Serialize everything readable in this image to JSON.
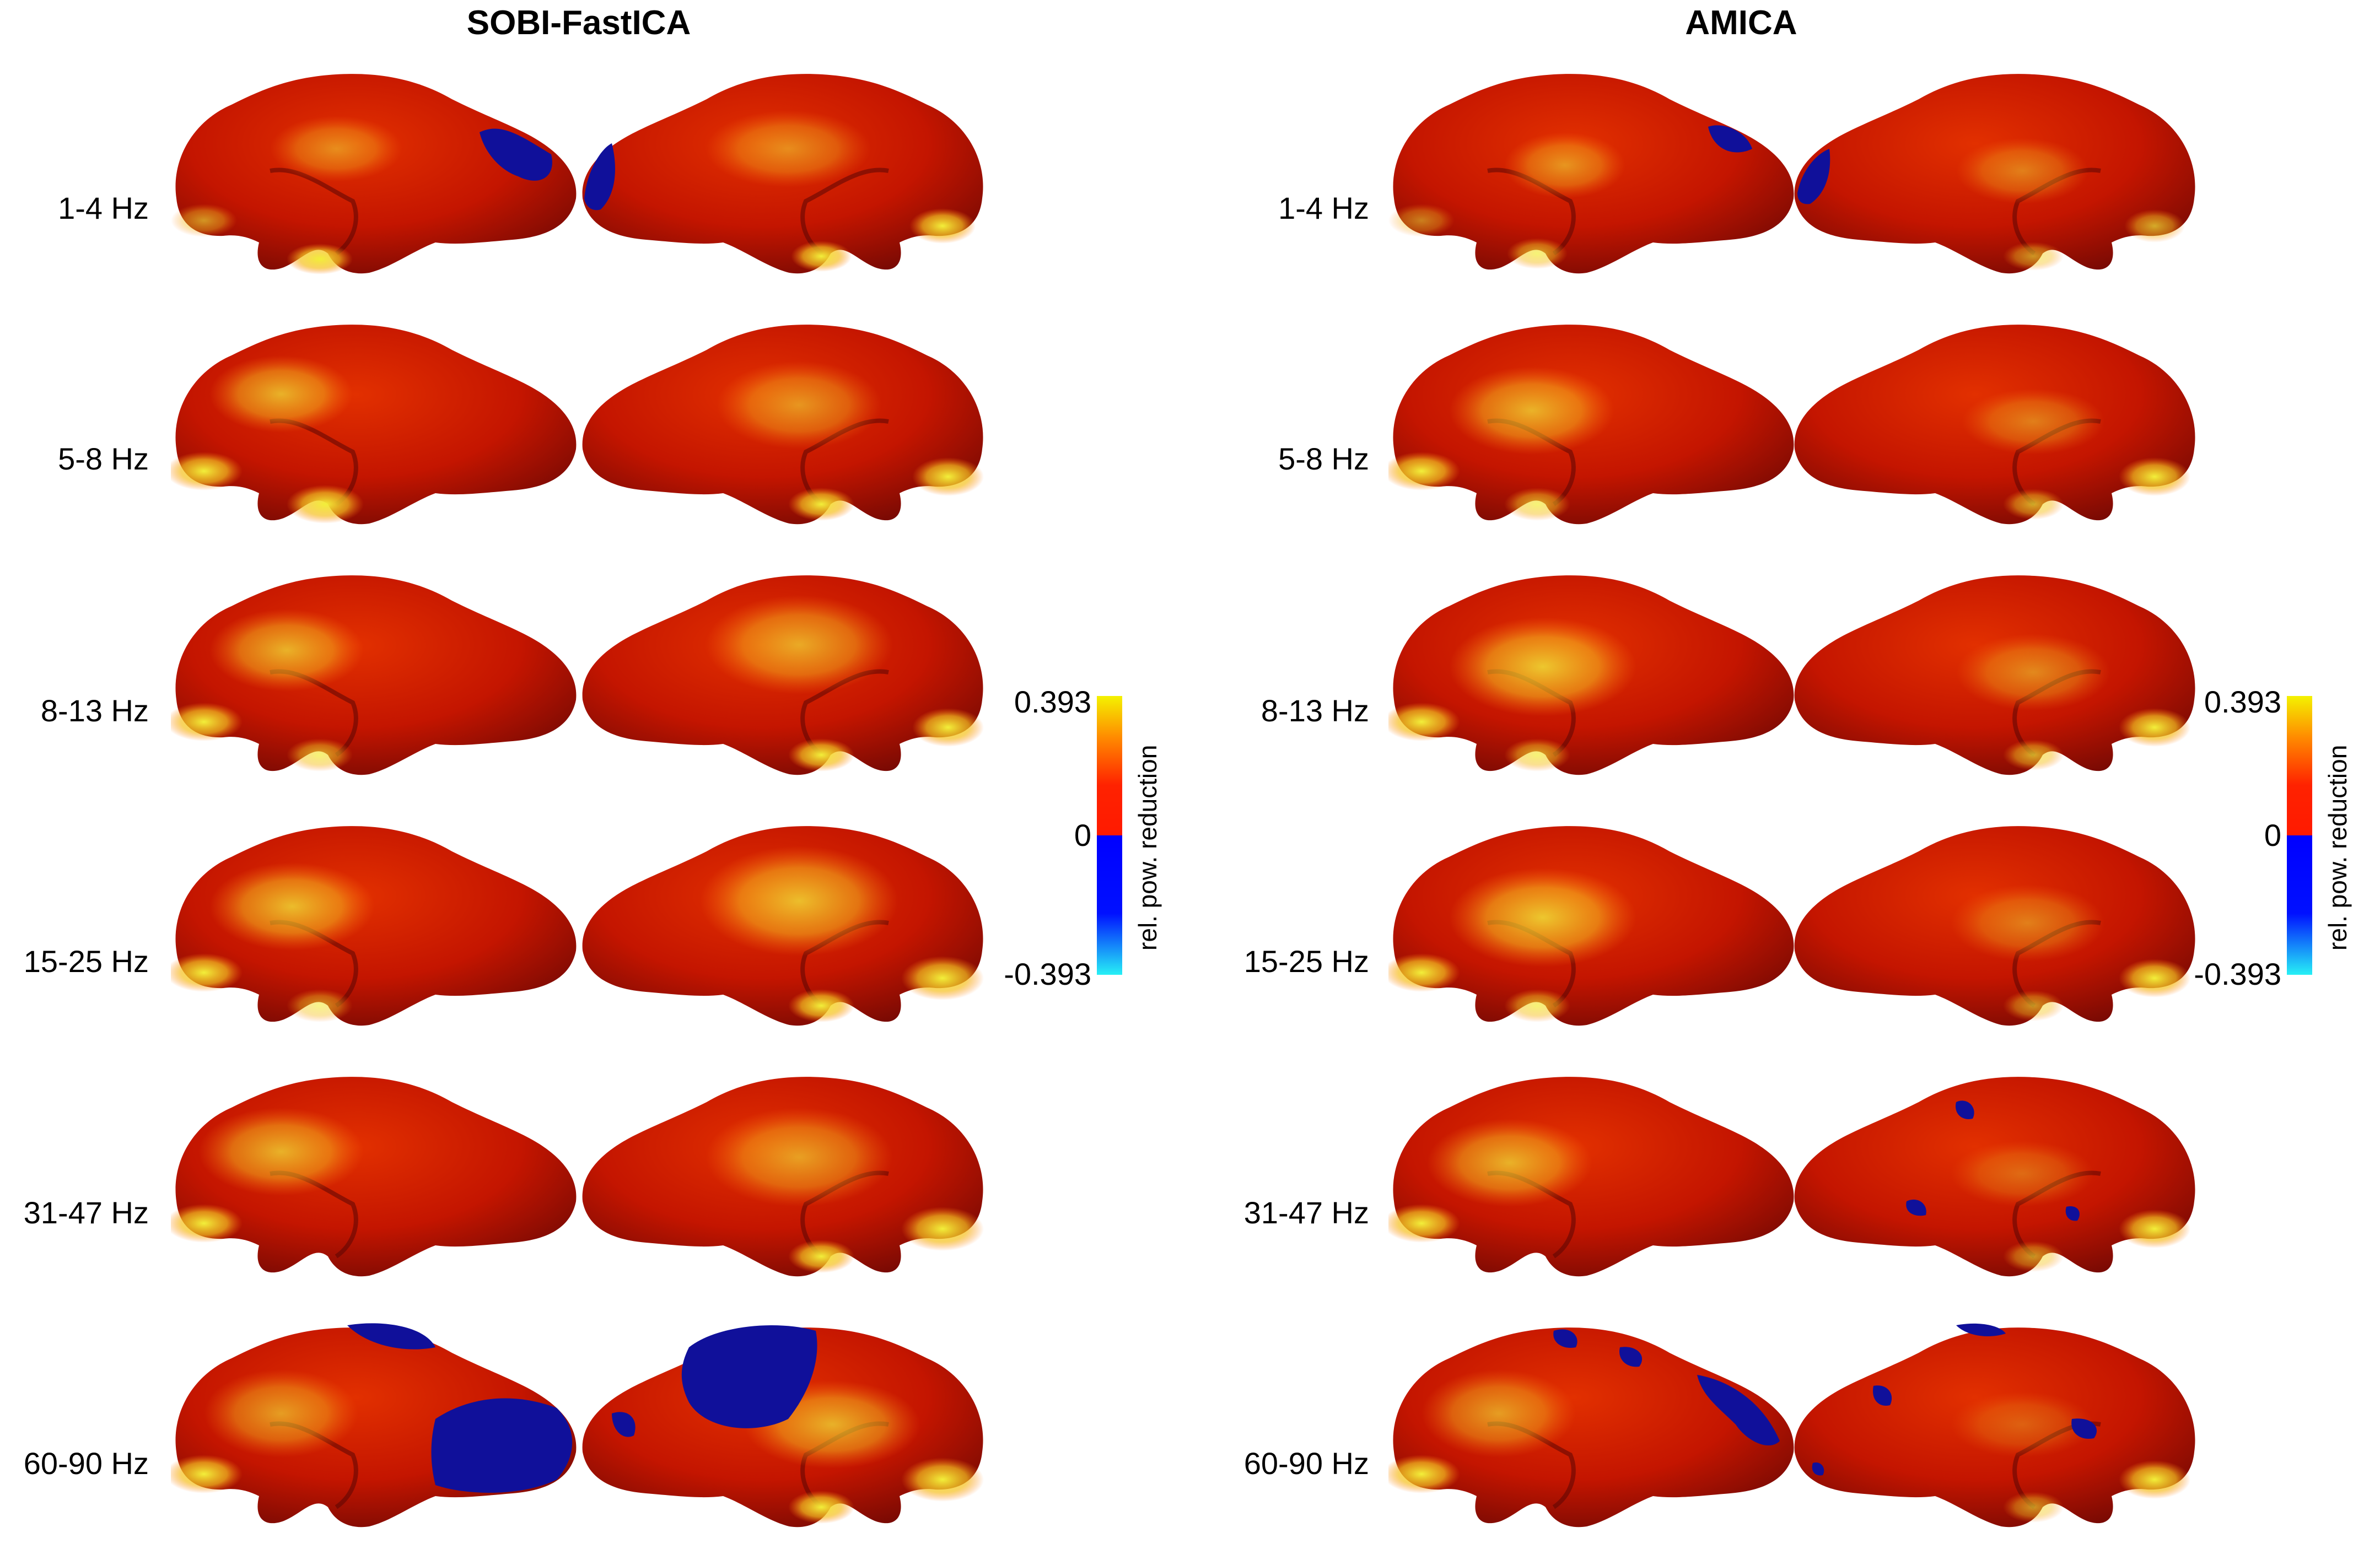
{
  "figure": {
    "panels": [
      {
        "title": "SOBI-FastICA",
        "rows": [
          {
            "label": "1-4 Hz",
            "blue_left": "occipital",
            "blue_right": "occipital"
          },
          {
            "label": "5-8 Hz",
            "blue_left": "none",
            "blue_right": "none"
          },
          {
            "label": "8-13 Hz",
            "blue_left": "none",
            "blue_right": "none"
          },
          {
            "label": "15-25 Hz",
            "blue_left": "none",
            "blue_right": "none"
          },
          {
            "label": "31-47 Hz",
            "blue_left": "none",
            "blue_right": "none"
          },
          {
            "label": "60-90 Hz",
            "blue_left": "large-occipital",
            "blue_right": "large-superior"
          }
        ]
      },
      {
        "title": "AMICA",
        "rows": [
          {
            "label": "1-4 Hz",
            "blue_left": "occipital",
            "blue_right": "occipital"
          },
          {
            "label": "5-8 Hz",
            "blue_left": "none",
            "blue_right": "none"
          },
          {
            "label": "8-13 Hz",
            "blue_left": "none",
            "blue_right": "none"
          },
          {
            "label": "15-25 Hz",
            "blue_left": "none",
            "blue_right": "none"
          },
          {
            "label": "31-47 Hz",
            "blue_left": "none",
            "blue_right": "spots"
          },
          {
            "label": "60-90 Hz",
            "blue_left": "spots",
            "blue_right": "spots"
          }
        ]
      }
    ],
    "colorbar": {
      "max_label": "0.393",
      "zero_label": "0",
      "min_label": "-0.393",
      "title": "rel. pow. reduction",
      "colors": {
        "top": "#f4f200",
        "upper_mid": "#ff1a00",
        "lower_mid": "#0000ff",
        "bottom": "#27f0f5"
      }
    },
    "colors": {
      "cortex_dark": "#7a0a05",
      "cortex_red": "#d21a00",
      "cortex_orange": "#ff6a10",
      "cortex_yellow": "#e6e82a",
      "neg_blue": "#11119a"
    }
  }
}
